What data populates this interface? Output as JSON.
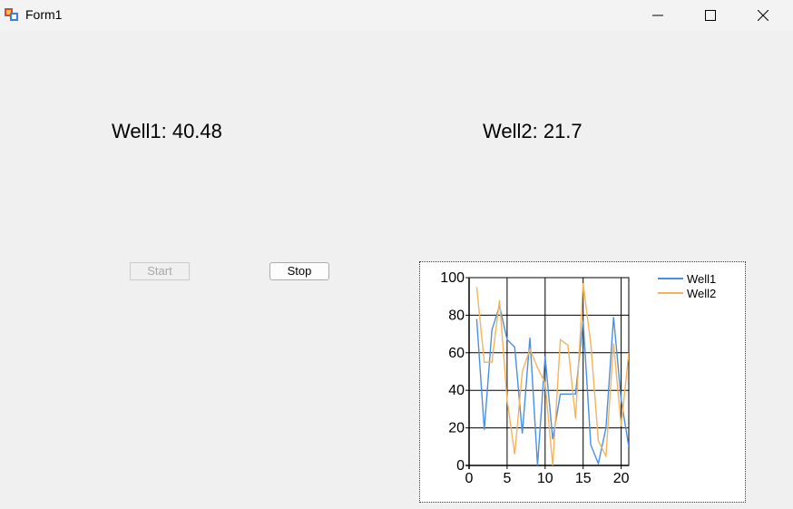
{
  "window": {
    "title": "Form1",
    "icon": "form-app-icon",
    "controls": [
      "minimize-icon",
      "maximize-icon",
      "close-icon"
    ]
  },
  "readouts": {
    "well1": "Well1: 40.48",
    "well2": "Well2: 21.7"
  },
  "buttons": {
    "start_label": "Start",
    "start_enabled": false,
    "stop_label": "Stop",
    "stop_enabled": true
  },
  "chart_data": {
    "type": "line",
    "xlim": [
      0,
      21
    ],
    "ylim": [
      0,
      100
    ],
    "x_ticks": [
      0,
      5,
      10,
      15,
      20
    ],
    "y_ticks": [
      0,
      20,
      40,
      60,
      80,
      100
    ],
    "grid": true,
    "legend_position": "top-right",
    "series": [
      {
        "name": "Well1",
        "color": "#4a90e2",
        "x": [
          1,
          2,
          3,
          4,
          5,
          6,
          7,
          8,
          9,
          10,
          11,
          12,
          13,
          14,
          15,
          16,
          17,
          18,
          19,
          20,
          21
        ],
        "values": [
          78,
          19,
          72,
          85,
          67,
          63,
          17,
          68,
          0,
          58,
          14,
          38,
          38,
          38,
          77,
          11,
          1,
          20,
          79,
          35,
          10
        ]
      },
      {
        "name": "Well2",
        "color": "#f5b35a",
        "x": [
          1,
          2,
          3,
          4,
          5,
          6,
          7,
          8,
          9,
          10,
          11,
          12,
          13,
          14,
          15,
          16,
          17,
          18,
          19,
          20,
          21
        ],
        "values": [
          95,
          55,
          55,
          88,
          35,
          6,
          50,
          62,
          52,
          44,
          0,
          67,
          64,
          25,
          97,
          65,
          13,
          5,
          65,
          21,
          60
        ]
      }
    ]
  }
}
